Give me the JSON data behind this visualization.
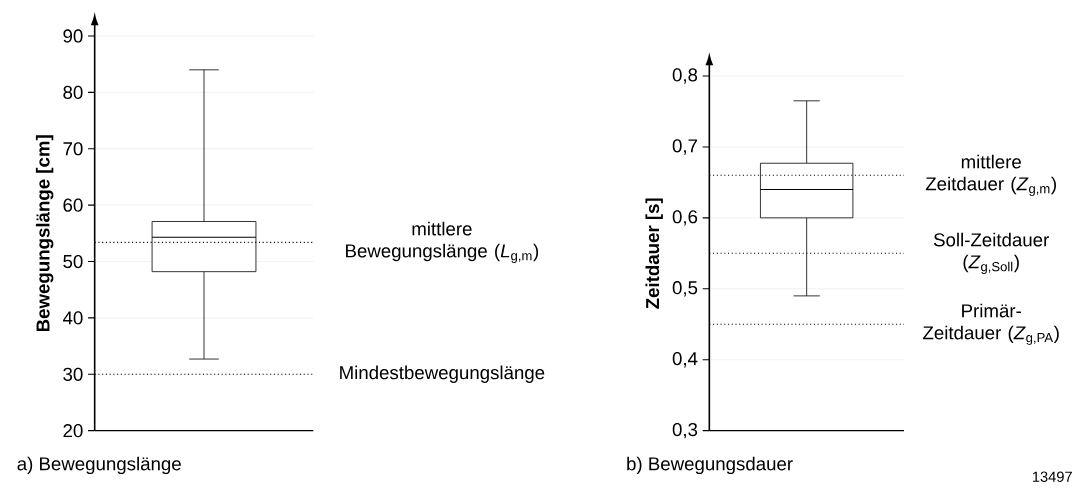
{
  "chart_data": [
    {
      "type": "box",
      "title": "a) Bewegungslänge",
      "ylabel": "Bewegungslänge [cm]",
      "categories": [
        null
      ],
      "boxes": [
        {
          "low": 32.7,
          "q1": 48.2,
          "median": 54.3,
          "q3": 57.1,
          "high": 84.0
        }
      ],
      "ylim": [
        20,
        90
      ],
      "yticks": [
        20,
        30,
        40,
        50,
        60,
        70,
        80,
        90
      ],
      "grid": "y",
      "ref_lines": [
        {
          "axis": "y",
          "value": 53.4,
          "label": "mittlere Bewegungslänge (*L*$_{g,m}$)",
          "line_style": "dotted"
        },
        {
          "axis": "y",
          "value": 30,
          "label": "Mindestbewegungslänge",
          "line_style": "dotted"
        }
      ]
    },
    {
      "type": "box",
      "title": "b) Bewegungsdauer",
      "ylabel": "Zeitdauer [s]",
      "categories": [
        null
      ],
      "boxes": [
        {
          "low": 0.49,
          "q1": 0.6,
          "median": 0.64,
          "q3": 0.677,
          "high": 0.765
        }
      ],
      "ylim": [
        0.3,
        0.8
      ],
      "yticks": [
        {
          "value": 0.3,
          "label": "0,3"
        },
        {
          "value": 0.4,
          "label": "0,4"
        },
        {
          "value": 0.5,
          "label": "0,5"
        },
        {
          "value": 0.6,
          "label": "0,6"
        },
        {
          "value": 0.7,
          "label": "0,7"
        },
        {
          "value": 0.8,
          "label": "0,8"
        }
      ],
      "grid": "y",
      "ref_lines": [
        {
          "axis": "y",
          "value": 0.66,
          "label": "mittlere Zeitdauer (*Z*$_{g,m}$)",
          "line_style": "dotted"
        },
        {
          "axis": "y",
          "value": 0.55,
          "label": "Soll-Zeitdauer (*Z*$_{g,Soll}$)",
          "line_style": "dotted"
        },
        {
          "axis": "y",
          "value": 0.45,
          "label": "Primär-Zeitdauer (*Z*$_{g,PA}$)",
          "line_style": "dotted"
        }
      ],
      "annotations": [
        "13497"
      ]
    }
  ]
}
